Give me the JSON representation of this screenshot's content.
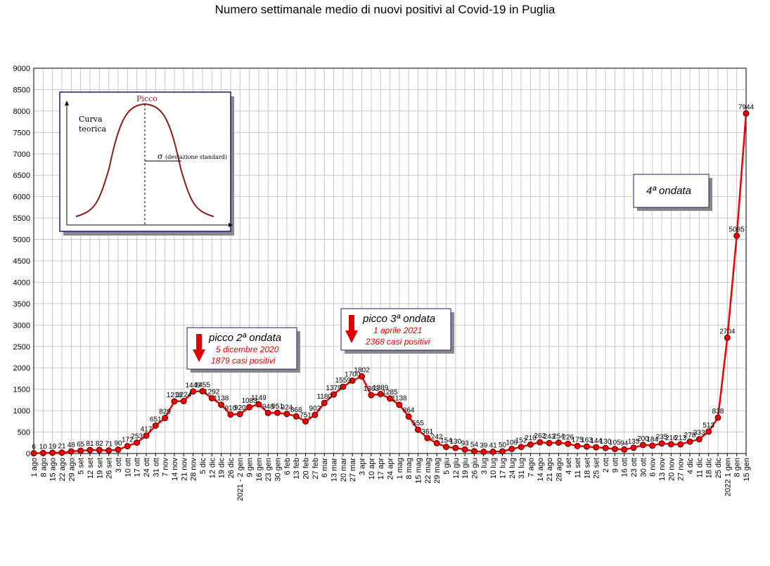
{
  "chart_data": {
    "type": "line",
    "title": "Numero settimanale medio di nuovi positivi al Covid-19 in Puglia",
    "ylim": [
      0,
      9000
    ],
    "yticks": [
      0,
      500,
      1000,
      1500,
      2000,
      2500,
      3000,
      3500,
      4000,
      4500,
      5000,
      5500,
      6000,
      6500,
      7000,
      7500,
      8000,
      8500,
      9000
    ],
    "grid": true,
    "line_color": "#ee0000",
    "marker_color": "#ee0000",
    "categories": [
      "1 ago",
      "8 ago",
      "15 ago",
      "22 ago",
      "29 ago",
      "5 set",
      "12 set",
      "19 set",
      "26 set",
      "3 ott",
      "10 ott",
      "17 ott",
      "24 ott",
      "31 ott",
      "7 nov",
      "14 nov",
      "21 nov",
      "28 nov",
      "5 dic",
      "12 dic",
      "19 dic",
      "26 dic",
      "2021 - 2 gen",
      "9 gen",
      "16 gen",
      "23 gen",
      "30 gen",
      "6 feb",
      "13 feb",
      "20 feb",
      "27 feb",
      "6 mar",
      "13 mar",
      "20 mar",
      "27 mar",
      "3 apr",
      "10 apr",
      "17 apr",
      "24 apr",
      "1 mag",
      "8 mag",
      "15 mag",
      "22 mag",
      "29 mag",
      "5 giu",
      "12 giu",
      "19 giu",
      "26 giu",
      "3 lug",
      "10 lug",
      "17 lug",
      "24 lug",
      "31 lug",
      "7 ago",
      "14 ago",
      "21 ago",
      "28 ago",
      "4 set",
      "11 set",
      "18 set",
      "25 set",
      "2 ott",
      "9 ott",
      "16 ott",
      "23 ott",
      "30 ott",
      "6 nov",
      "13 nov",
      "20 nov",
      "27 nov",
      "4 dic",
      "11 dic",
      "18 dic",
      "25 dic",
      "2022 1 gen",
      "8 gen",
      "15 gen"
    ],
    "values": [
      6,
      10,
      19,
      21,
      48,
      65,
      81,
      82,
      71,
      90,
      172,
      253,
      417,
      651,
      829,
      1218,
      1224,
      1449,
      1455,
      1292,
      1138,
      910,
      920,
      1083,
      1149,
      948,
      951,
      924,
      868,
      751,
      902,
      1180,
      1379,
      1559,
      1700,
      1802,
      1363,
      1389,
      1285,
      1138,
      864,
      555,
      361,
      242,
      154,
      130,
      93,
      54,
      39,
      41,
      50,
      106,
      152,
      210,
      262,
      243,
      254,
      226,
      175,
      163,
      144,
      130,
      105,
      94,
      135,
      200,
      184,
      235,
      216,
      213,
      278,
      333,
      513,
      838,
      2704,
      5085,
      7944
    ],
    "value_labels": [
      "6",
      "10",
      "19",
      "21",
      "48",
      "65",
      "81",
      "82",
      "71",
      "90",
      "172",
      "253",
      "417",
      "651",
      "829",
      "1218",
      "1224",
      "1449",
      "1455",
      "1292",
      "1138",
      "910",
      "920",
      "1083",
      "1149",
      "948",
      "951",
      "924",
      "868",
      "751",
      "902",
      "1180",
      "1379",
      "1559",
      "1700",
      "1802",
      "1363",
      "1389",
      "1285",
      "1138",
      "864",
      "555",
      "361",
      "242",
      "154",
      "130",
      "93",
      "54",
      "39",
      "41",
      "50",
      "106",
      "152",
      "210",
      "262",
      "243",
      "254",
      "226",
      "175",
      "163",
      "144",
      "130",
      "105",
      "94",
      "135",
      "200",
      "184",
      "235",
      "216",
      "213",
      "278",
      "333",
      "513",
      "838",
      "2704",
      "5085",
      "7944"
    ],
    "annotations": {
      "wave2": {
        "title": "picco 2ª ondata",
        "line1": "5 dicembre 2020",
        "line2": "1879 casi positivi"
      },
      "wave3": {
        "title": "picco 3ª ondata",
        "line1": "1 aprile 2021",
        "line2": "2368 casi positivi"
      },
      "wave4": {
        "title": "4ª ondata"
      }
    },
    "inset": {
      "peak_label": "Picco",
      "curve_label_1": "Curva",
      "curve_label_2": "teorica",
      "sigma": "σ",
      "sigma_label": "(deviazione standard)"
    }
  }
}
